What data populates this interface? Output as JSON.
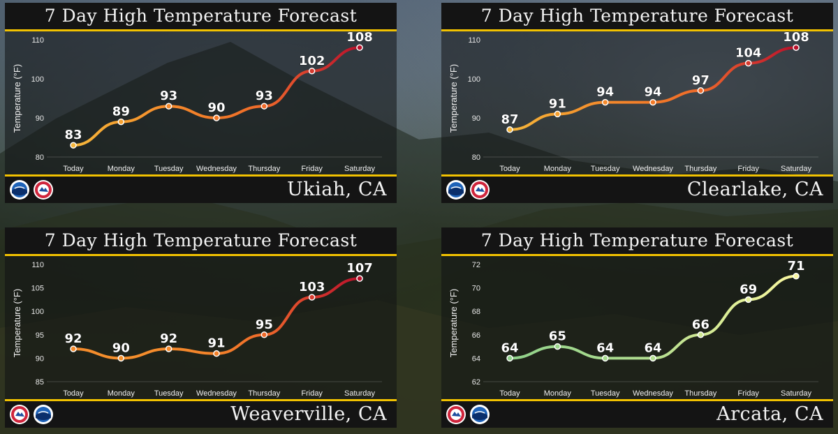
{
  "colors": {
    "accent": "#f2c200",
    "bar": "#141414",
    "text": "#f4f4f4"
  },
  "icons": {
    "logo_left": "noaa-logo-icon",
    "logo_right": "nws-logo-icon"
  },
  "chart_data": [
    {
      "type": "line",
      "title": "7 Day High Temperature Forecast",
      "location": "Ukiah, CA",
      "ylabel": "Temperature (°F)",
      "categories": [
        "Today",
        "Monday",
        "Tuesday",
        "Wednesday",
        "Thursday",
        "Friday",
        "Saturday"
      ],
      "values": [
        83,
        89,
        93,
        90,
        93,
        102,
        108
      ],
      "ylim": [
        80,
        110
      ],
      "yticks": [
        80,
        90,
        100,
        110
      ],
      "colors": [
        "#f6b73c",
        "#f5a030",
        "#f58a2c",
        "#f27a28",
        "#ef6a2a",
        "#d63a2e",
        "#b8102a"
      ],
      "logo_order": [
        "noaa",
        "nws"
      ]
    },
    {
      "type": "line",
      "title": "7 Day High Temperature Forecast",
      "location": "Clearlake, CA",
      "ylabel": "Temperature (°F)",
      "categories": [
        "Today",
        "Monday",
        "Tuesday",
        "Wednesday",
        "Thursday",
        "Friday",
        "Saturday"
      ],
      "values": [
        87,
        91,
        94,
        94,
        97,
        104,
        108
      ],
      "ylim": [
        80,
        110
      ],
      "yticks": [
        80,
        90,
        100,
        110
      ],
      "colors": [
        "#f6b73c",
        "#f5a030",
        "#f58a2c",
        "#f27a28",
        "#ef6a2a",
        "#d63a2e",
        "#b8102a"
      ],
      "logo_order": [
        "noaa",
        "nws"
      ]
    },
    {
      "type": "line",
      "title": "7 Day High Temperature Forecast",
      "location": "Weaverville, CA",
      "ylabel": "Temperature (°F)",
      "categories": [
        "Today",
        "Monday",
        "Tuesday",
        "Wednesday",
        "Thursday",
        "Friday",
        "Saturday"
      ],
      "values": [
        92,
        90,
        92,
        91,
        95,
        103,
        107
      ],
      "ylim": [
        85,
        110
      ],
      "yticks": [
        85,
        90,
        95,
        100,
        105,
        110
      ],
      "colors": [
        "#f58a2c",
        "#f5902c",
        "#f58a2c",
        "#f3822a",
        "#ef6a2a",
        "#d63a2e",
        "#b8102a"
      ],
      "logo_order": [
        "nws",
        "noaa"
      ]
    },
    {
      "type": "line",
      "title": "7 Day High Temperature Forecast",
      "location": "Arcata, CA",
      "ylabel": "Temperature (°F)",
      "categories": [
        "Today",
        "Monday",
        "Tuesday",
        "Wednesday",
        "Thursday",
        "Friday",
        "Saturday"
      ],
      "values": [
        64,
        65,
        64,
        64,
        66,
        69,
        71
      ],
      "ylim": [
        62,
        72
      ],
      "yticks": [
        62,
        64,
        66,
        68,
        70,
        72
      ],
      "colors": [
        "#8fd18a",
        "#9dd68c",
        "#a7da8e",
        "#b3de90",
        "#cfe894",
        "#e6f29a",
        "#f8f6a0"
      ],
      "logo_order": [
        "nws",
        "noaa"
      ]
    }
  ]
}
